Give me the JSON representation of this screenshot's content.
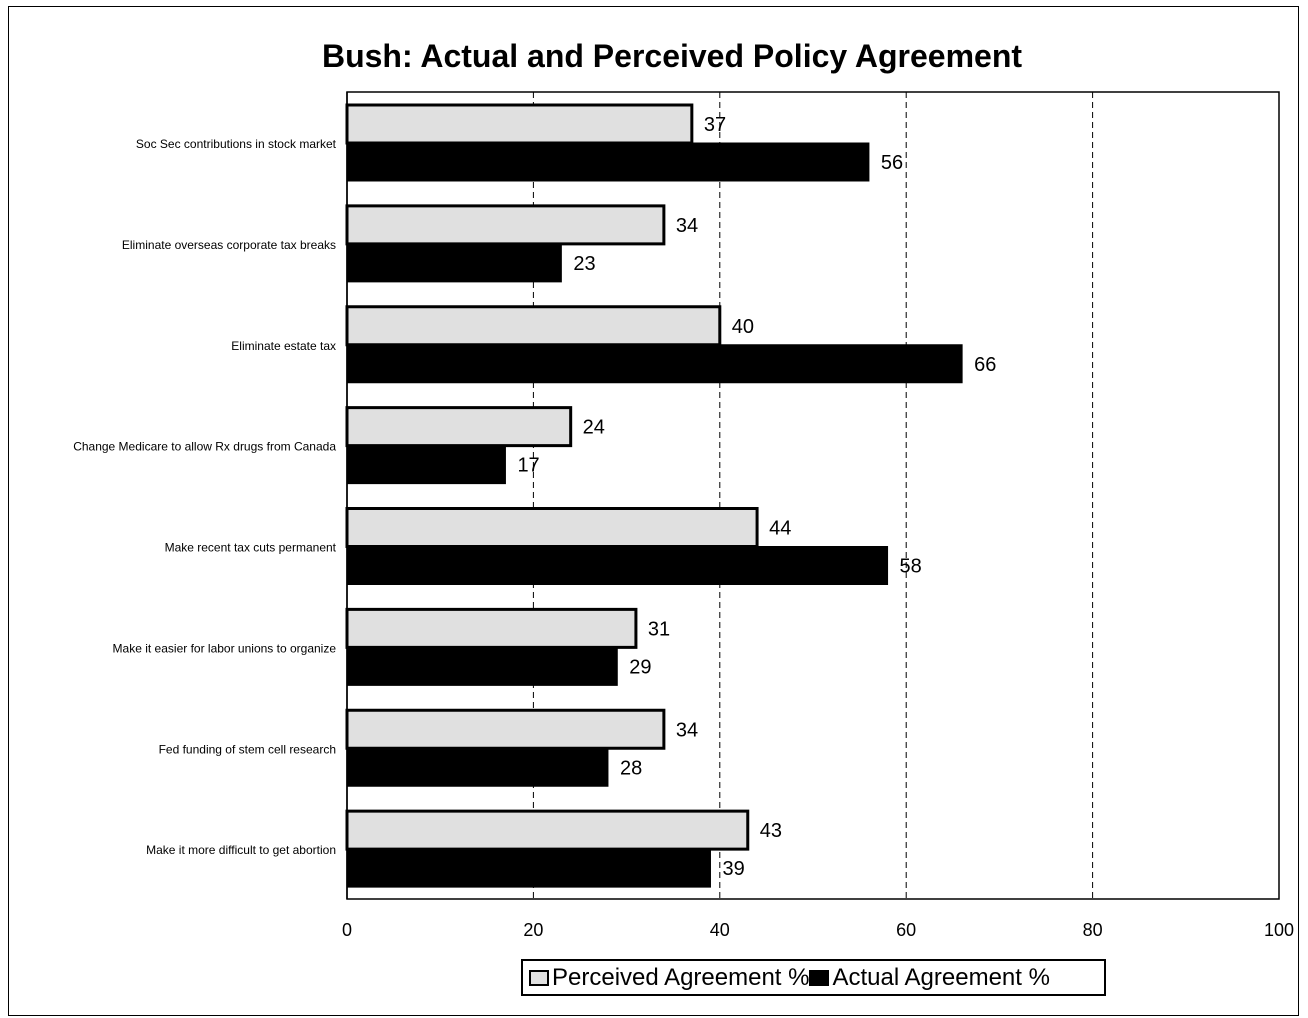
{
  "chart_data": {
    "type": "bar",
    "orientation": "horizontal",
    "title": "Bush: Actual and Perceived Policy Agreement",
    "categories": [
      "Soc Sec contributions in stock market",
      "Eliminate overseas corporate tax breaks",
      "Eliminate estate tax",
      "Change Medicare to allow Rx drugs from Canada",
      "Make recent tax cuts permanent",
      "Make it easier for labor unions to organize",
      "Fed funding of stem cell research",
      "Make it more difficult to get abortion"
    ],
    "series": [
      {
        "name": "Perceived Agreement %",
        "color": "#e0e0e0",
        "values": [
          37,
          34,
          40,
          24,
          44,
          31,
          34,
          43
        ]
      },
      {
        "name": "Actual Agreement %",
        "color": "#000000",
        "values": [
          56,
          23,
          66,
          17,
          58,
          29,
          28,
          39
        ]
      }
    ],
    "xlim": [
      0,
      100
    ],
    "xticks": [
      0,
      20,
      40,
      60,
      80,
      100
    ],
    "grid": "vertical dashed",
    "legend": "bottom"
  }
}
